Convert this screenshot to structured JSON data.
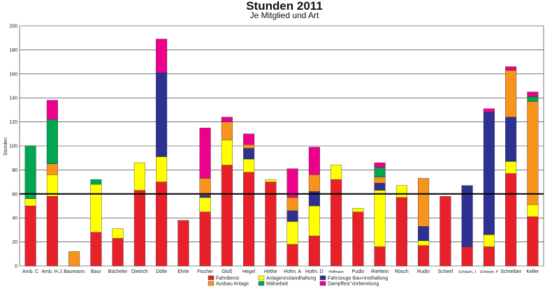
{
  "chart_data": {
    "type": "bar",
    "stacked": true,
    "title": "Stunden 2011",
    "subtitle": "Je Mitglied und Art",
    "ylabel": "Stunden",
    "xlabel": "",
    "ylim": [
      0,
      200
    ],
    "yticks": [
      0,
      20,
      40,
      60,
      80,
      100,
      120,
      140,
      160,
      180,
      200
    ],
    "grid": true,
    "reference_line": 60,
    "legend_position": "bottom",
    "categories": [
      "Amb. C",
      "Amb. H.J.",
      "Baumann",
      "Baur",
      "Bücheler",
      "Dietrich",
      "Dölle",
      "Ehrle",
      "Fischer",
      "Gloß",
      "Hegel",
      "Hirthe",
      "Hofm. A",
      "Hofm. D",
      "Hoffmann",
      "Pudlo",
      "Riehlein",
      "Rösch",
      "Rudin",
      "Scheef",
      "Schlawin, J",
      "Schlawin, P",
      "Schreiber",
      "Keller"
    ],
    "series": [
      {
        "name": "Fahrdienst",
        "color": "#e8202a",
        "values": [
          50,
          58,
          0,
          28,
          23,
          63,
          70,
          38,
          45,
          84,
          78,
          70,
          18,
          25,
          72,
          45,
          16,
          57,
          17,
          58,
          16,
          16,
          77,
          41
        ]
      },
      {
        "name": "Anlageninstandhaltung",
        "color": "#ffff00",
        "values": [
          6,
          18,
          0,
          40,
          8,
          23,
          21,
          0,
          12,
          21,
          11,
          2,
          19,
          25,
          12,
          3,
          47,
          10,
          4,
          0,
          0,
          10,
          10,
          10
        ]
      },
      {
        "name": "Fahrzeuge Bau+Insthaltung",
        "color": "#2e3192",
        "values": [
          0,
          0,
          0,
          0,
          0,
          0,
          70,
          0,
          2,
          0,
          9,
          0,
          9,
          12,
          0,
          0,
          6,
          0,
          12,
          0,
          51,
          102,
          37,
          0
        ]
      },
      {
        "name": "Ausbau Anlage",
        "color": "#f7941d",
        "values": [
          0,
          9,
          12,
          0,
          0,
          0,
          0,
          0,
          14,
          15,
          3,
          0,
          11,
          14,
          0,
          0,
          5,
          0,
          40,
          0,
          0,
          0,
          39,
          86
        ]
      },
      {
        "name": "Mähərbeit",
        "color": "#00a651",
        "values": [
          44,
          37,
          0,
          4,
          0,
          0,
          0,
          0,
          0,
          0,
          0,
          0,
          0,
          0,
          0,
          0,
          8,
          0,
          0,
          0,
          0,
          0,
          0,
          4
        ]
      },
      {
        "name": "Dampffest Vorbereitung",
        "color": "#ec008c",
        "values": [
          0,
          16,
          0,
          0,
          0,
          0,
          28,
          0,
          42,
          4,
          9,
          0,
          24,
          23,
          0,
          0,
          4,
          0,
          0,
          0,
          0,
          3,
          3,
          4
        ]
      }
    ]
  }
}
